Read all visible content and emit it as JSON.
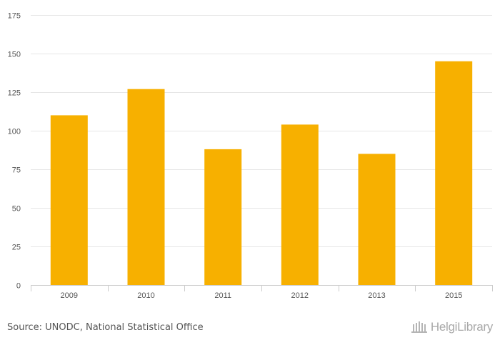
{
  "chart_data": {
    "type": "bar",
    "categories": [
      "2009",
      "2010",
      "2011",
      "2012",
      "2013",
      "2015"
    ],
    "values": [
      110,
      127,
      88,
      104,
      85,
      145
    ],
    "title": "",
    "xlabel": "",
    "ylabel": "",
    "ylim": [
      0,
      175
    ],
    "yticks": [
      0,
      25,
      50,
      75,
      100,
      125,
      150,
      175
    ],
    "grid": true,
    "bar_color": "#f7b000",
    "grid_color": "#e6e6e6"
  },
  "footer": {
    "source": "Source: UNODC, National Statistical Office",
    "logo_text": "HelgiLibrary"
  }
}
